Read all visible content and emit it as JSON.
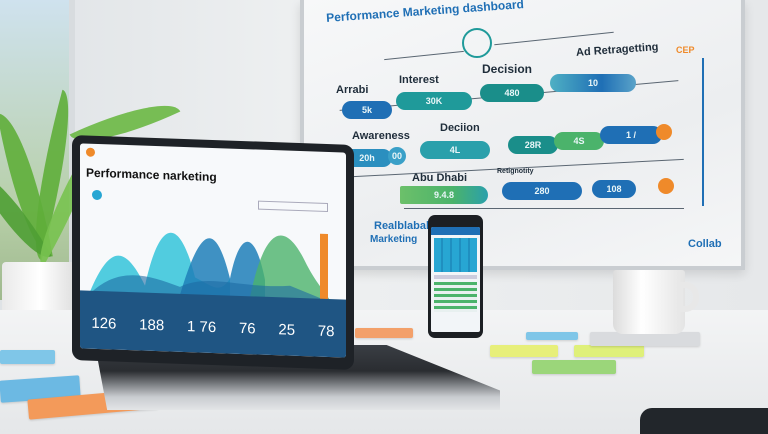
{
  "whiteboard": {
    "title": "Performance Marketing dashboard",
    "row1": {
      "labels": [
        "Arrabi",
        "Interest",
        "Decision",
        "Ad Retragetting"
      ],
      "values": [
        "5k",
        "30K",
        "480",
        "10"
      ]
    },
    "row2": {
      "labels": [
        "Awareness",
        "Deciion"
      ],
      "values": [
        "20h",
        "00",
        "4L",
        "28R",
        "4S",
        "1 /"
      ]
    },
    "row3": {
      "labels": [
        "Abu Dhabi",
        "Retignotity"
      ],
      "values": [
        "9.4.8",
        "280",
        "108"
      ]
    },
    "side_label": "CEP",
    "brand_left": [
      "Realblabal",
      "Marketing"
    ],
    "brand_right": "Collab",
    "colors": {
      "teal": "#1f9a9a",
      "blue": "#1f6fb5",
      "green": "#4bb36b",
      "orange": "#ef8a2a"
    }
  },
  "laptop": {
    "title": "Performance narketing",
    "stats": [
      "126",
      "188",
      "1 76",
      "76",
      "25",
      "78"
    ]
  }
}
